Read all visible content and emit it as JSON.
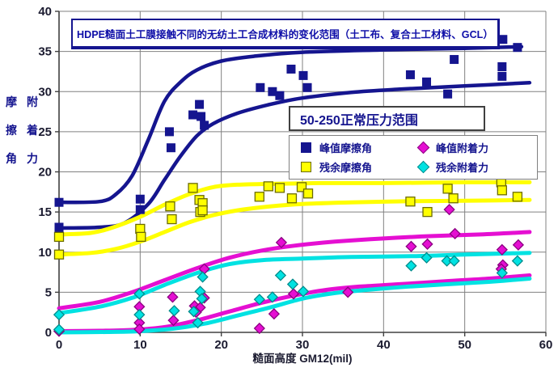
{
  "title": "HDPE糙面土工膜接触不同的无纺土工合成材料的变化范围（土工布、复合土工材料、GCL）",
  "pressure_note": "50-250正常压力范围",
  "axes": {
    "y_rows": [
      [
        "摩",
        "附"
      ],
      [
        "擦",
        "着"
      ],
      [
        "角",
        "力"
      ]
    ]
  },
  "legend": {
    "items": [
      {
        "label": "峰值摩擦角",
        "marker": "square",
        "color": "#15158F",
        "outline": "#15158F"
      },
      {
        "label": "残余摩擦角",
        "marker": "square",
        "color": "#FFFF00",
        "outline": "#6b6b00"
      },
      {
        "label": "峰值附着力",
        "marker": "diamond",
        "color": "#E50FD2",
        "outline": "#8A0080"
      },
      {
        "label": "残余附着力",
        "marker": "diamond",
        "color": "#00E2E2",
        "outline": "#008B8B"
      }
    ]
  },
  "chart_data": {
    "type": "scatter",
    "title": "HDPE糙面土工膜接触不同的无纺土工合成材料的变化范围（土工布、复合土工材料、GCL）",
    "annotation": "50-250正常压力范围",
    "xlabel": "糙面高度 GM12(mil)",
    "ylabel": "摩擦角 / 附着力",
    "xlim": [
      0,
      60
    ],
    "ylim": [
      0,
      40
    ],
    "x_ticks": [
      0,
      10,
      20,
      30,
      40,
      50,
      60
    ],
    "y_ticks": [
      0,
      5,
      10,
      15,
      20,
      25,
      30,
      35,
      40
    ],
    "grid": true,
    "legend_position": "inside-right",
    "series": [
      {
        "name": "峰值摩擦角",
        "marker": "square",
        "color": "#15158F",
        "outline": "none",
        "points": [
          [
            0,
            16.2
          ],
          [
            0,
            13.1
          ],
          [
            0,
            12.4
          ],
          [
            10,
            16.6
          ],
          [
            10,
            15.3
          ],
          [
            13.6,
            25.0
          ],
          [
            13.8,
            23.0
          ],
          [
            16.5,
            27.1
          ],
          [
            17.3,
            28.4
          ],
          [
            17.5,
            26.9
          ],
          [
            17.9,
            25.8
          ],
          [
            24.8,
            30.5
          ],
          [
            26.3,
            30.0
          ],
          [
            27.2,
            29.5
          ],
          [
            28.6,
            32.8
          ],
          [
            30.1,
            32.0
          ],
          [
            30.6,
            30.5
          ],
          [
            43.3,
            32.1
          ],
          [
            45.3,
            31.2
          ],
          [
            47.9,
            29.7
          ],
          [
            48.7,
            34.0
          ],
          [
            54.6,
            33.1
          ],
          [
            54.6,
            31.9
          ],
          [
            54.7,
            36.5
          ],
          [
            56.5,
            35.5
          ]
        ]
      },
      {
        "name": "残余摩擦角",
        "marker": "square",
        "color": "#FFFF00",
        "outline": "#6b6b00",
        "points": [
          [
            0,
            11.9
          ],
          [
            0,
            9.7
          ],
          [
            10,
            12.9
          ],
          [
            10.1,
            11.9
          ],
          [
            13.7,
            15.7
          ],
          [
            13.9,
            14.1
          ],
          [
            16.5,
            18.0
          ],
          [
            17.3,
            16.5
          ],
          [
            17.7,
            16.1
          ],
          [
            17.4,
            15.0
          ],
          [
            17.7,
            15.2
          ],
          [
            24.7,
            16.9
          ],
          [
            25.8,
            18.2
          ],
          [
            27.2,
            18.0
          ],
          [
            28.7,
            16.7
          ],
          [
            29.9,
            18.1
          ],
          [
            30.7,
            17.3
          ],
          [
            43.3,
            16.3
          ],
          [
            45.4,
            15.0
          ],
          [
            47.9,
            17.9
          ],
          [
            48.6,
            16.7
          ],
          [
            54.5,
            18.7
          ],
          [
            54.6,
            17.7
          ],
          [
            56.5,
            16.9
          ]
        ]
      },
      {
        "name": "峰值附着力",
        "marker": "diamond",
        "color": "#E50FD2",
        "outline": "#8A0080",
        "points": [
          [
            0,
            0.15
          ],
          [
            9.9,
            3.2
          ],
          [
            9.9,
            1.2
          ],
          [
            9.9,
            0.4
          ],
          [
            14.0,
            4.4
          ],
          [
            14.1,
            1.5
          ],
          [
            16.7,
            3.3
          ],
          [
            17.4,
            3.1
          ],
          [
            16.9,
            2.5
          ],
          [
            17.9,
            7.9
          ],
          [
            17.9,
            4.3
          ],
          [
            24.7,
            0.5
          ],
          [
            26.5,
            2.3
          ],
          [
            27.4,
            11.2
          ],
          [
            28.9,
            4.8
          ],
          [
            35.6,
            5.0
          ],
          [
            43.4,
            10.7
          ],
          [
            45.4,
            11.0
          ],
          [
            48.1,
            15.3
          ],
          [
            48.8,
            12.3
          ],
          [
            54.6,
            10.3
          ],
          [
            54.7,
            8.4
          ],
          [
            54.5,
            7.9
          ],
          [
            56.6,
            10.9
          ]
        ]
      },
      {
        "name": "残余附着力",
        "marker": "diamond",
        "color": "#00E2E2",
        "outline": "#008B8B",
        "points": [
          [
            0,
            2.2
          ],
          [
            0,
            0.35
          ],
          [
            9.9,
            4.8
          ],
          [
            9.9,
            2.2
          ],
          [
            14.2,
            2.7
          ],
          [
            16.6,
            2.6
          ],
          [
            17.1,
            1.2
          ],
          [
            17.4,
            5.1
          ],
          [
            17.6,
            4.2
          ],
          [
            17.7,
            6.9
          ],
          [
            24.7,
            4.1
          ],
          [
            26.3,
            4.4
          ],
          [
            27.3,
            7.1
          ],
          [
            28.8,
            6.0
          ],
          [
            30.1,
            5.1
          ],
          [
            43.4,
            8.3
          ],
          [
            45.3,
            9.3
          ],
          [
            47.8,
            8.9
          ],
          [
            48.7,
            8.9
          ],
          [
            54.6,
            7.4
          ],
          [
            56.5,
            8.9
          ]
        ]
      }
    ],
    "envelope_curves": [
      {
        "series": "峰值摩擦角",
        "bound": "upper",
        "color": "#15158F",
        "width": 4.5,
        "points": [
          [
            0,
            16.2
          ],
          [
            5,
            16.3
          ],
          [
            7,
            17.2
          ],
          [
            9,
            19.5
          ],
          [
            11,
            24
          ],
          [
            13,
            28.8
          ],
          [
            15,
            31.2
          ],
          [
            17,
            32.7
          ],
          [
            20,
            33.8
          ],
          [
            24,
            34.4
          ],
          [
            30,
            34.9
          ],
          [
            40,
            35.2
          ],
          [
            50,
            35.4
          ],
          [
            57,
            35.6
          ]
        ]
      },
      {
        "series": "峰值摩擦角",
        "bound": "lower",
        "color": "#15158F",
        "width": 4.5,
        "points": [
          [
            0,
            13.0
          ],
          [
            5,
            13.1
          ],
          [
            8,
            13.6
          ],
          [
            11,
            16
          ],
          [
            13,
            19
          ],
          [
            15,
            22
          ],
          [
            17,
            24.5
          ],
          [
            19,
            26
          ],
          [
            22,
            27.3
          ],
          [
            26,
            28.4
          ],
          [
            30,
            29.2
          ],
          [
            36,
            29.9
          ],
          [
            42,
            30.3
          ],
          [
            50,
            30.7
          ],
          [
            58,
            31.1
          ]
        ]
      },
      {
        "series": "残余摩擦角",
        "bound": "upper",
        "color": "#FFFF00",
        "width": 5,
        "points": [
          [
            0,
            12.2
          ],
          [
            4,
            12.4
          ],
          [
            7,
            13.2
          ],
          [
            10,
            14.4
          ],
          [
            13,
            15.9
          ],
          [
            16,
            17.2
          ],
          [
            19,
            18.1
          ],
          [
            22,
            18.4
          ],
          [
            26,
            18.5
          ],
          [
            32,
            18.6
          ],
          [
            40,
            18.6
          ],
          [
            50,
            18.7
          ],
          [
            58,
            18.7
          ]
        ]
      },
      {
        "series": "残余摩擦角",
        "bound": "lower",
        "color": "#FFFF00",
        "width": 5,
        "points": [
          [
            0,
            9.7
          ],
          [
            4,
            9.9
          ],
          [
            7,
            10.4
          ],
          [
            10,
            11.3
          ],
          [
            13,
            12.5
          ],
          [
            16,
            13.7
          ],
          [
            19,
            14.6
          ],
          [
            22,
            15.2
          ],
          [
            26,
            15.7
          ],
          [
            30,
            16.0
          ],
          [
            36,
            16.2
          ],
          [
            44,
            16.35
          ],
          [
            50,
            16.4
          ],
          [
            58,
            16.5
          ]
        ]
      },
      {
        "series": "峰值附着力",
        "bound": "upper",
        "color": "#E50FD2",
        "width": 5,
        "points": [
          [
            0,
            3.0
          ],
          [
            5,
            3.8
          ],
          [
            9,
            5.0
          ],
          [
            13,
            6.5
          ],
          [
            17,
            8.0
          ],
          [
            21,
            9.3
          ],
          [
            25,
            10.2
          ],
          [
            29,
            10.8
          ],
          [
            34,
            11.3
          ],
          [
            40,
            11.7
          ],
          [
            46,
            12.0
          ],
          [
            52,
            12.2
          ],
          [
            58,
            12.5
          ]
        ]
      },
      {
        "series": "峰值附着力",
        "bound": "lower",
        "color": "#E50FD2",
        "width": 5,
        "points": [
          [
            0,
            0.15
          ],
          [
            5,
            0.2
          ],
          [
            9,
            0.3
          ],
          [
            13,
            0.65
          ],
          [
            17,
            1.5
          ],
          [
            21,
            2.6
          ],
          [
            25,
            3.7
          ],
          [
            29,
            4.6
          ],
          [
            33,
            5.3
          ],
          [
            37,
            5.7
          ],
          [
            42,
            6.0
          ],
          [
            48,
            6.4
          ],
          [
            53,
            6.7
          ],
          [
            58,
            7.1
          ]
        ]
      },
      {
        "series": "残余附着力",
        "bound": "upper",
        "color": "#00E2E2",
        "width": 5,
        "points": [
          [
            0,
            2.4
          ],
          [
            5,
            3.2
          ],
          [
            9,
            4.3
          ],
          [
            13,
            5.9
          ],
          [
            17,
            7.4
          ],
          [
            21,
            8.5
          ],
          [
            25,
            9.0
          ],
          [
            30,
            9.2
          ],
          [
            36,
            9.4
          ],
          [
            44,
            9.5
          ],
          [
            50,
            9.7
          ],
          [
            58,
            9.9
          ]
        ]
      },
      {
        "series": "残余附着力",
        "bound": "lower",
        "color": "#00E2E2",
        "width": 5,
        "points": [
          [
            0,
            0.0
          ],
          [
            6,
            0.05
          ],
          [
            10,
            0.15
          ],
          [
            14,
            0.45
          ],
          [
            18,
            1.1
          ],
          [
            22,
            2.1
          ],
          [
            26,
            3.1
          ],
          [
            30,
            4.2
          ],
          [
            34,
            4.9
          ],
          [
            38,
            5.3
          ],
          [
            43,
            5.7
          ],
          [
            48,
            6.0
          ],
          [
            53,
            6.3
          ],
          [
            58,
            6.7
          ]
        ]
      }
    ]
  }
}
